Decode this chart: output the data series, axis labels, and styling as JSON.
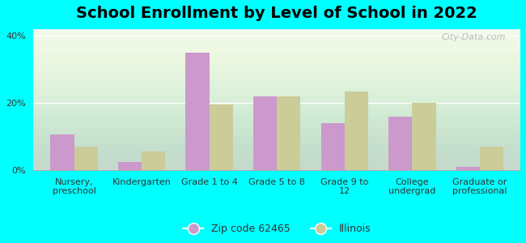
{
  "title": "School Enrollment by Level of School in 2022",
  "categories": [
    "Nursery,\npreschool",
    "Kindergarten",
    "Grade 1 to 4",
    "Grade 5 to 8",
    "Grade 9 to\n12",
    "College\nundergrad",
    "Graduate or\nprofessional"
  ],
  "zip_values": [
    10.5,
    2.5,
    35.0,
    22.0,
    14.0,
    16.0,
    1.0
  ],
  "illinois_values": [
    7.0,
    5.5,
    19.5,
    22.0,
    23.5,
    20.0,
    7.0
  ],
  "zip_color": "#cc99cc",
  "illinois_color": "#cccc99",
  "background_color": "#00ffff",
  "ylim": [
    0,
    42
  ],
  "yticks": [
    0,
    20,
    40
  ],
  "ytick_labels": [
    "0%",
    "20%",
    "40%"
  ],
  "bar_width": 0.35,
  "legend_label_zip": "Zip code 62465",
  "legend_label_illinois": "Illinois",
  "watermark": "City-Data.com",
  "title_fontsize": 14,
  "tick_fontsize": 8,
  "legend_fontsize": 9
}
